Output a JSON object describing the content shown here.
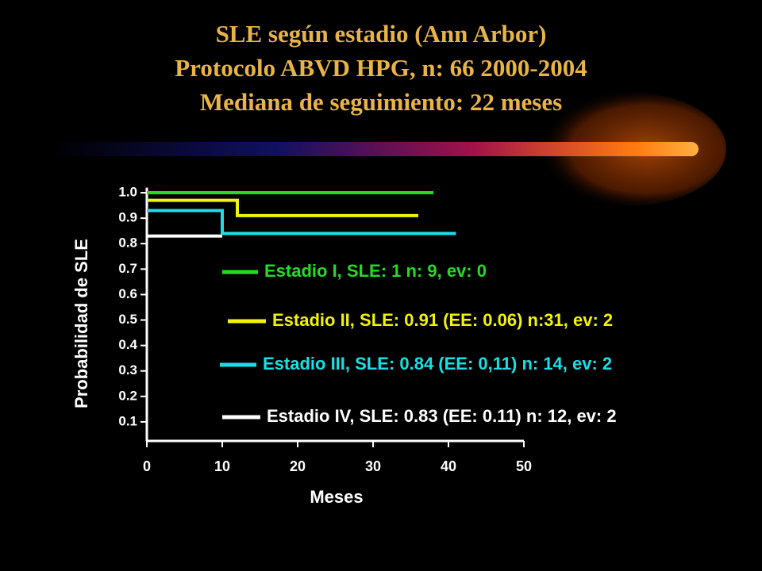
{
  "chart_data": {
    "type": "step",
    "title": [
      "SLE según estadio (Ann Arbor)",
      "Protocolo  ABVD HPG, n: 66  2000-2004",
      "Mediana de seguimiento:  22 meses"
    ],
    "x_label": "Meses",
    "y_label": "Probabilidad de SLE",
    "xlim": [
      0,
      50
    ],
    "xticks": [
      0,
      10,
      20,
      30,
      40,
      50
    ],
    "ylim": [
      0.025,
      1.02
    ],
    "yticks": [
      {
        "value": 0.1,
        "label": "0.1"
      },
      {
        "value": 0.2,
        "label": "0.2"
      },
      {
        "value": 0.3,
        "label": "0.3"
      },
      {
        "value": 0.4,
        "label": "0.4"
      },
      {
        "value": 0.5,
        "label": "0.5"
      },
      {
        "value": 0.6,
        "label": "0.6"
      },
      {
        "value": 0.7,
        "label": "0.7"
      },
      {
        "value": 0.8,
        "label": "0.8"
      },
      {
        "value": 0.9,
        "label": "0.9"
      },
      {
        "value": 1,
        "label": "1.0"
      }
    ],
    "series": [
      {
        "name": "Estadio I, SLE: 1 n: 9, ev: 0",
        "color": "#22dd22",
        "x": [
          0,
          38
        ],
        "values": [
          1,
          1
        ]
      },
      {
        "name": "Estadio II, SLE: 0.91 (EE: 0.06) n:31, ev: 2",
        "color": "#f2f20a",
        "x": [
          0,
          12,
          12,
          36
        ],
        "values": [
          0.97,
          0.97,
          0.91,
          0.91
        ]
      },
      {
        "name": "Estadio III, SLE: 0.84 (EE: 0,11) n: 14, ev: 2",
        "color": "#18e0e8",
        "x": [
          0,
          10,
          10,
          41
        ],
        "values": [
          0.93,
          0.93,
          0.84,
          0.84
        ]
      },
      {
        "name": "Estadio IV, SLE: 0.83 (EE: 0.11) n: 12, ev: 2",
        "color": "#ffffff",
        "x": [
          0,
          10
        ],
        "values": [
          0.83,
          0.83
        ]
      }
    ]
  }
}
